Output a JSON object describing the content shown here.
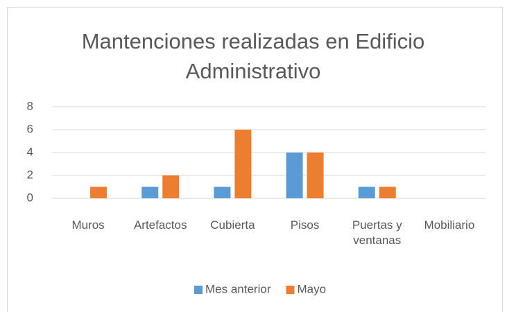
{
  "chart_data": {
    "type": "bar",
    "title": "Mantenciones realizadas en Edificio Administrativo",
    "categories": [
      "Muros",
      "Artefactos",
      "Cubierta",
      "Pisos",
      "Puertas y ventanas",
      "Mobiliario"
    ],
    "series": [
      {
        "name": "Mes anterior",
        "color": "#5b9bd5",
        "values": [
          0,
          1,
          1,
          4,
          1,
          0
        ]
      },
      {
        "name": "Mayo",
        "color": "#ed7d31",
        "values": [
          1,
          2,
          6,
          4,
          1,
          0
        ]
      }
    ],
    "ylim": [
      0,
      8
    ],
    "yticks": [
      0,
      2,
      4,
      6,
      8
    ],
    "grid": true,
    "legend": "bottom"
  }
}
